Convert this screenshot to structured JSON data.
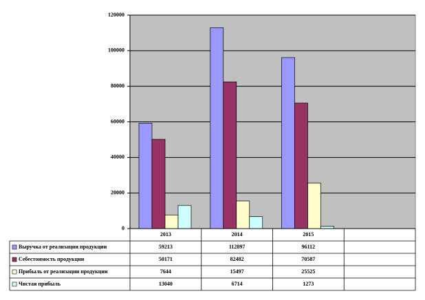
{
  "chart_data": {
    "type": "bar",
    "categories": [
      "2013",
      "2014",
      "2015",
      null
    ],
    "series": [
      {
        "name": "Выручка от реализации продукции",
        "color": "#9999ff",
        "values": [
          59213,
          112897,
          96112,
          null
        ]
      },
      {
        "name": "Себестоимость продукции",
        "color": "#993366",
        "values": [
          50171,
          82482,
          70587,
          null
        ]
      },
      {
        "name": "Прибыль от реализации продукции",
        "color": "#ffffcc",
        "values": [
          7644,
          15497,
          25525,
          null
        ]
      },
      {
        "name": "Чистая прибыль",
        "color": "#ccffff",
        "values": [
          13040,
          6714,
          1273,
          null
        ]
      }
    ],
    "ylim": [
      0,
      120000
    ],
    "yticks": [
      0,
      20000,
      40000,
      60000,
      80000,
      100000,
      120000
    ],
    "grid": true,
    "plot_background": "#c0c0c0"
  }
}
